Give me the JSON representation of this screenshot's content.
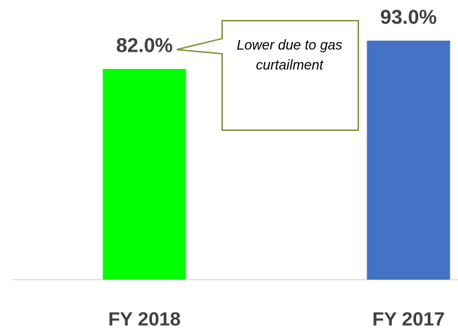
{
  "chart_data": {
    "type": "bar",
    "categories": [
      "FY 2018",
      "FY 2017"
    ],
    "values": [
      82.0,
      93.0
    ],
    "value_labels": [
      "82.0%",
      "93.0%"
    ],
    "colors": [
      "#00ff00",
      "#4472c4"
    ],
    "annotation": "Lower due to gas curtailment"
  }
}
